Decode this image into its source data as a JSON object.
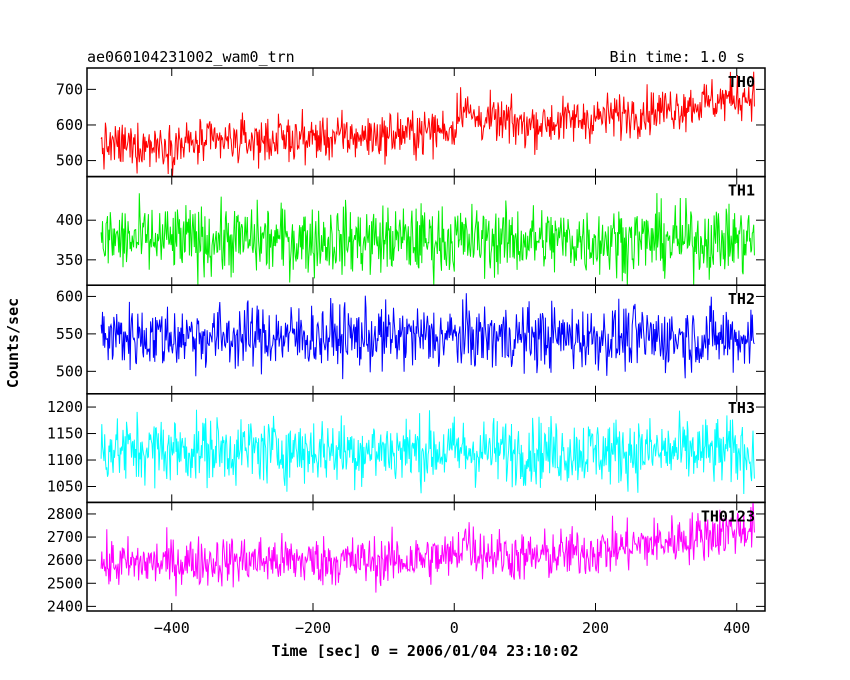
{
  "header": {
    "title": "ae060104231002_wam0_trn",
    "bin_time": "Bin time: 1.0 s"
  },
  "chart_data": {
    "type": "line",
    "xlabel": "Time [sec] 0 = 2006/01/04 23:10:02",
    "ylabel": "Counts/sec",
    "xlim": [
      -520,
      440
    ],
    "x_range": [
      -500,
      425
    ],
    "xticks": [
      -400,
      -200,
      0,
      200,
      400
    ],
    "x_tick_labels": [
      "−400",
      "−200",
      "0",
      "200",
      "400"
    ],
    "panels": [
      {
        "name": "TH0",
        "color": "#ff0000",
        "ylim": [
          455,
          760
        ],
        "yticks": [
          500,
          600,
          700
        ],
        "y_tick_labels": [
          "500",
          "600",
          "700"
        ],
        "trend": [
          [
            -500,
            540
          ],
          [
            -400,
            545
          ],
          [
            -250,
            560
          ],
          [
            -100,
            570
          ],
          [
            0,
            590
          ],
          [
            5,
            630
          ],
          [
            10,
            665
          ],
          [
            25,
            620
          ],
          [
            100,
            600
          ],
          [
            200,
            620
          ],
          [
            300,
            645
          ],
          [
            425,
            685
          ]
        ],
        "noise": 32
      },
      {
        "name": "TH1",
        "color": "#00ee00",
        "ylim": [
          318,
          455
        ],
        "yticks": [
          350,
          400
        ],
        "y_tick_labels": [
          "350",
          "400"
        ],
        "trend": [
          [
            -500,
            375
          ],
          [
            425,
            375
          ]
        ],
        "noise": 22
      },
      {
        "name": "TH2",
        "color": "#0000ff",
        "ylim": [
          470,
          615
        ],
        "yticks": [
          500,
          550,
          600
        ],
        "y_tick_labels": [
          "500",
          "550",
          "600"
        ],
        "trend": [
          [
            -500,
            547
          ],
          [
            425,
            545
          ]
        ],
        "noise": 22
      },
      {
        "name": "TH3",
        "color": "#00ffff",
        "ylim": [
          1020,
          1225
        ],
        "yticks": [
          1050,
          1100,
          1150,
          1200
        ],
        "y_tick_labels": [
          "1050",
          "1100",
          "1150",
          "1200"
        ],
        "trend": [
          [
            -500,
            1120
          ],
          [
            425,
            1115
          ]
        ],
        "noise": 32
      },
      {
        "name": "TH0123",
        "color": "#ff00ff",
        "ylim": [
          2380,
          2850
        ],
        "yticks": [
          2400,
          2500,
          2600,
          2700,
          2800
        ],
        "y_tick_labels": [
          "2400",
          "2500",
          "2600",
          "2700",
          "2800"
        ],
        "trend": [
          [
            -500,
            2580
          ],
          [
            -300,
            2600
          ],
          [
            -100,
            2595
          ],
          [
            0,
            2615
          ],
          [
            15,
            2700
          ],
          [
            30,
            2640
          ],
          [
            100,
            2610
          ],
          [
            200,
            2640
          ],
          [
            300,
            2680
          ],
          [
            425,
            2745
          ]
        ],
        "noise": 55
      }
    ]
  }
}
